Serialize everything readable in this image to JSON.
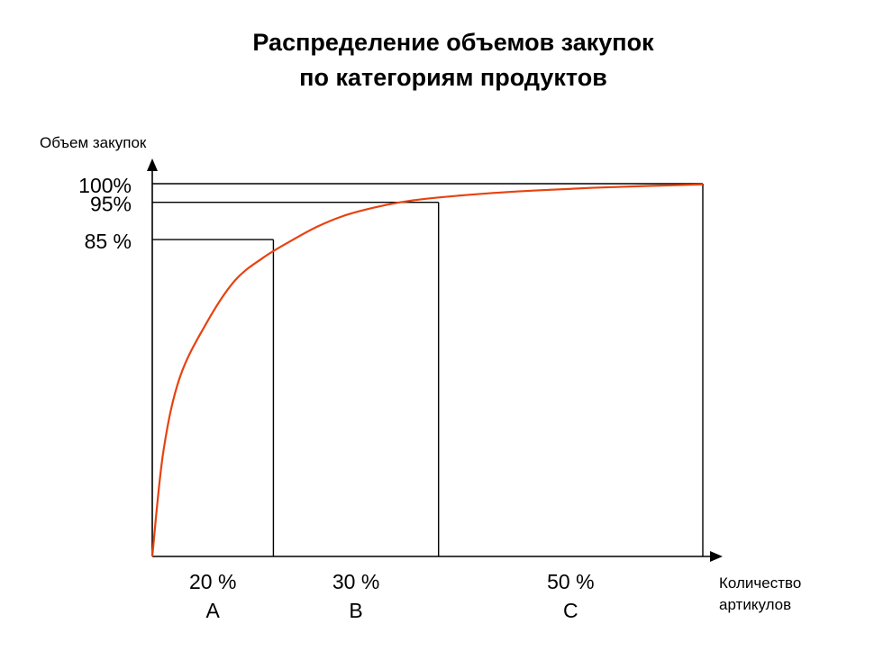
{
  "chart_data": {
    "type": "line",
    "title": [
      "Распределение объемов закупок",
      "по категориям продуктов"
    ],
    "ylabel": "Объем закупок",
    "xlabel": [
      "Количество",
      "артикулов"
    ],
    "xlim": [
      0,
      100
    ],
    "ylim": [
      0,
      100
    ],
    "y_ticks": [
      {
        "value": 100,
        "label": "100%"
      },
      {
        "value": 95,
        "label": "95%"
      },
      {
        "value": 85,
        "label": "85 %"
      }
    ],
    "series": [
      {
        "x": [
          0,
          2,
          5,
          10,
          15,
          20,
          25,
          30,
          35,
          40,
          45,
          50,
          60,
          70,
          80,
          90,
          100
        ],
        "y": [
          0,
          28,
          48,
          63,
          74,
          80,
          84.5,
          88.5,
          91.5,
          93.5,
          95,
          96,
          97.3,
          98.2,
          98.9,
          99.4,
          99.8
        ],
        "color": "#e8420f"
      }
    ],
    "segments": [
      {
        "percent": "20 %",
        "class": "A",
        "from": 0,
        "to": 22,
        "y": 85
      },
      {
        "percent": "30 %",
        "class": "B",
        "from": 22,
        "to": 52,
        "y": 95
      },
      {
        "percent": "50 %",
        "class": "C",
        "from": 52,
        "to": 100,
        "y": 100
      }
    ],
    "grid": false,
    "legend": "none"
  }
}
